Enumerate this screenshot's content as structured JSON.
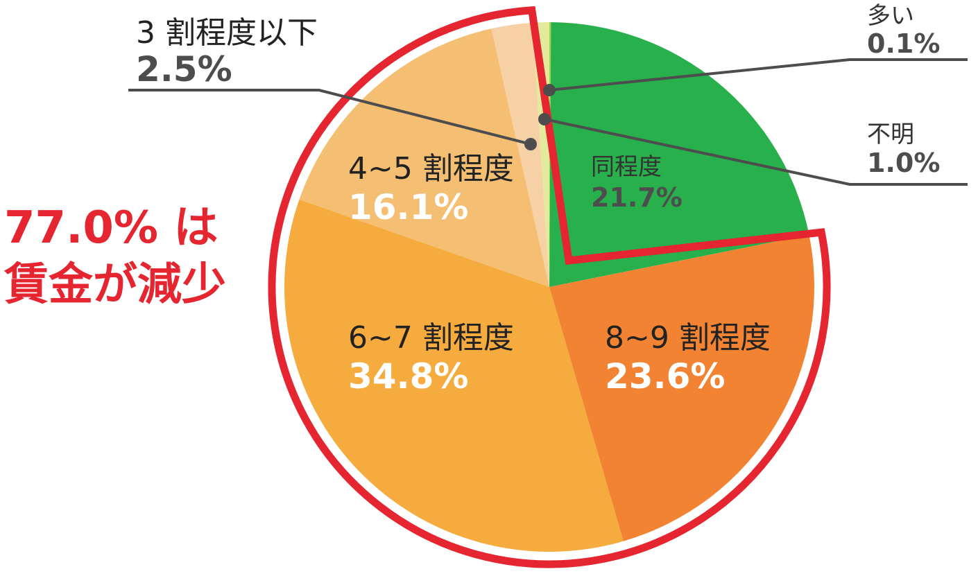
{
  "chart_data": {
    "type": "pie",
    "slices": [
      {
        "label": "多い",
        "value": 0.1,
        "value_label": "0.1%",
        "color": "#9fd34a"
      },
      {
        "label": "同程度",
        "value": 21.7,
        "value_label": "21.7%",
        "color": "#27b04b"
      },
      {
        "label": "8~9 割程度",
        "value": 23.6,
        "value_label": "23.6%",
        "color": "#f28332"
      },
      {
        "label": "6~7 割程度",
        "value": 34.8,
        "value_label": "34.8%",
        "color": "#f6ab3f"
      },
      {
        "label": "4~5 割程度",
        "value": 16.1,
        "value_label": "16.1%",
        "color": "#f4bf73"
      },
      {
        "label": "3 割程度以下",
        "value": 2.5,
        "value_label": "2.5%",
        "color": "#f5d1a5"
      },
      {
        "label": "不明",
        "value": 1.0,
        "value_label": "1.0%",
        "color": "#e3ea9b"
      }
    ],
    "callout": {
      "line1": "77.0% は",
      "line2": "賃金が減少",
      "color": "#e5252f"
    },
    "highlight_color": "#e5252f"
  }
}
